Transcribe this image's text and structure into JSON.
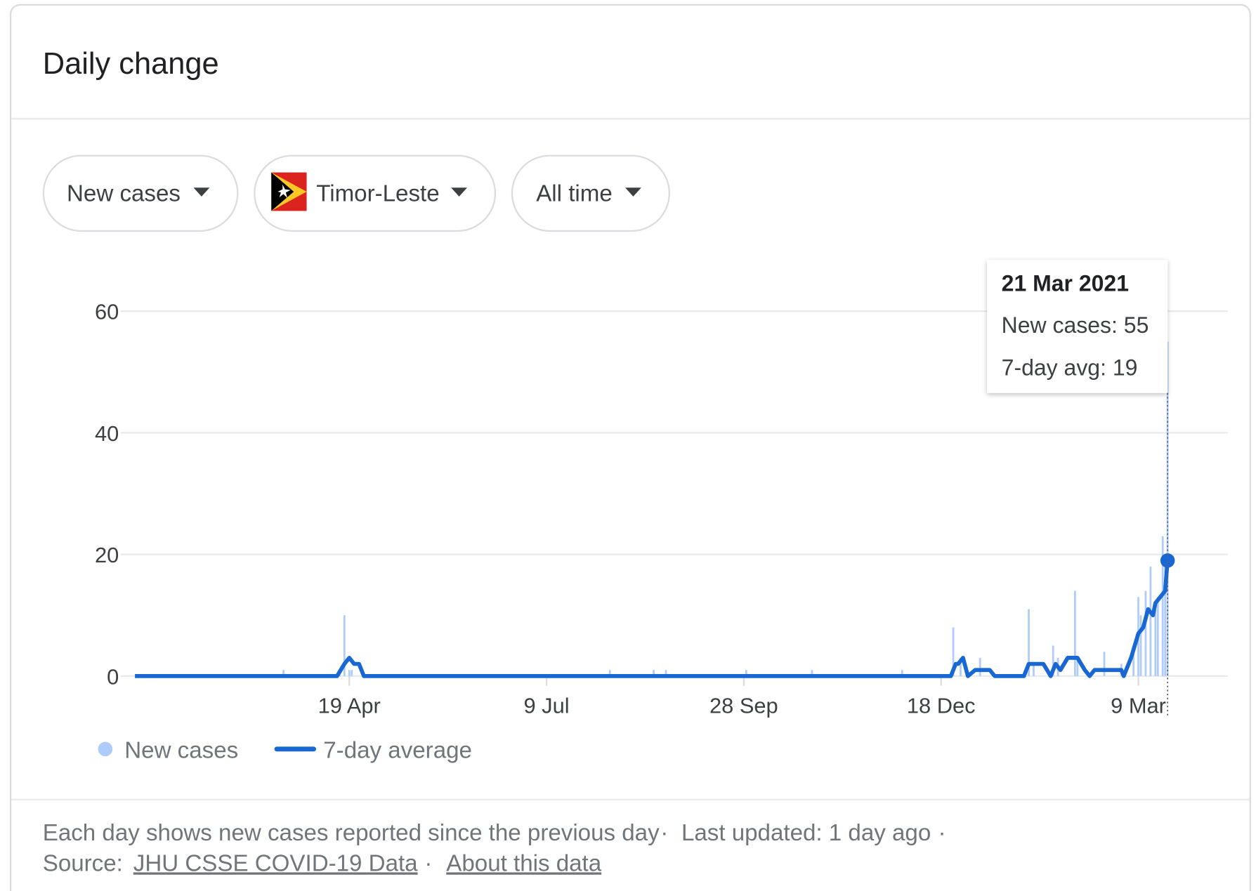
{
  "header": {
    "title": "Daily change"
  },
  "controls": [
    "New cases",
    "Timor-Leste",
    "All time"
  ],
  "chart_data": {
    "type": "combo",
    "xlim": [
      0,
      424
    ],
    "xticks": [
      {
        "value": 88,
        "label": "19 Apr"
      },
      {
        "value": 169,
        "label": "9 Jul"
      },
      {
        "value": 250,
        "label": "28 Sep"
      },
      {
        "value": 331,
        "label": "18 Dec"
      },
      {
        "value": 412,
        "label": "9 Mar"
      }
    ],
    "ylim": [
      0,
      60
    ],
    "yticks": [
      0,
      20,
      40,
      60
    ],
    "grid": true,
    "series": [
      {
        "name": "New cases",
        "type": "bar",
        "color": "#aecbfa",
        "x": [
          61,
          84,
          86,
          88,
          89,
          195,
          213,
          218,
          251,
          278,
          315,
          336,
          339,
          347,
          367,
          369,
          377,
          379,
          386,
          387,
          398,
          405,
          410,
          412,
          413,
          415,
          417,
          419,
          420,
          422,
          423,
          424
        ],
        "values": [
          1,
          1,
          10,
          1,
          1,
          1,
          1,
          1,
          1,
          1,
          1,
          8,
          3,
          3,
          11,
          2,
          5,
          3,
          14,
          3,
          4,
          2,
          4,
          13,
          10,
          14,
          18,
          11,
          13,
          23,
          18,
          55
        ]
      },
      {
        "name": "7-day average",
        "type": "line",
        "color": "#1967d2",
        "x": [
          0,
          83,
          86,
          88,
          90,
          92,
          94,
          335,
          337,
          338,
          340,
          342,
          345,
          351,
          353,
          365,
          367,
          373,
          376,
          378,
          380,
          383,
          387,
          390,
          392,
          394,
          405,
          406,
          407,
          409,
          412,
          414,
          416,
          418,
          419,
          423,
          424
        ],
        "values": [
          0,
          0,
          2,
          3,
          2,
          2,
          0,
          0,
          2,
          2,
          3,
          0,
          1,
          1,
          0,
          0,
          2,
          2,
          0,
          2,
          1,
          3,
          3,
          1,
          0,
          1,
          1,
          0,
          1,
          3,
          7,
          8,
          11,
          10,
          12,
          14,
          19
        ]
      }
    ]
  },
  "tooltip": {
    "title": "21 Mar 2021",
    "lines": [
      "New cases: 55",
      "7-day avg: 19"
    ]
  },
  "footer": {
    "note": "Each day shows new cases reported since the previous day",
    "separator": "·",
    "updated": "Last updated: 1 day ago",
    "source_label": "Source:",
    "links": [
      "JHU CSSE COVID-19 Data",
      "About this data"
    ]
  }
}
